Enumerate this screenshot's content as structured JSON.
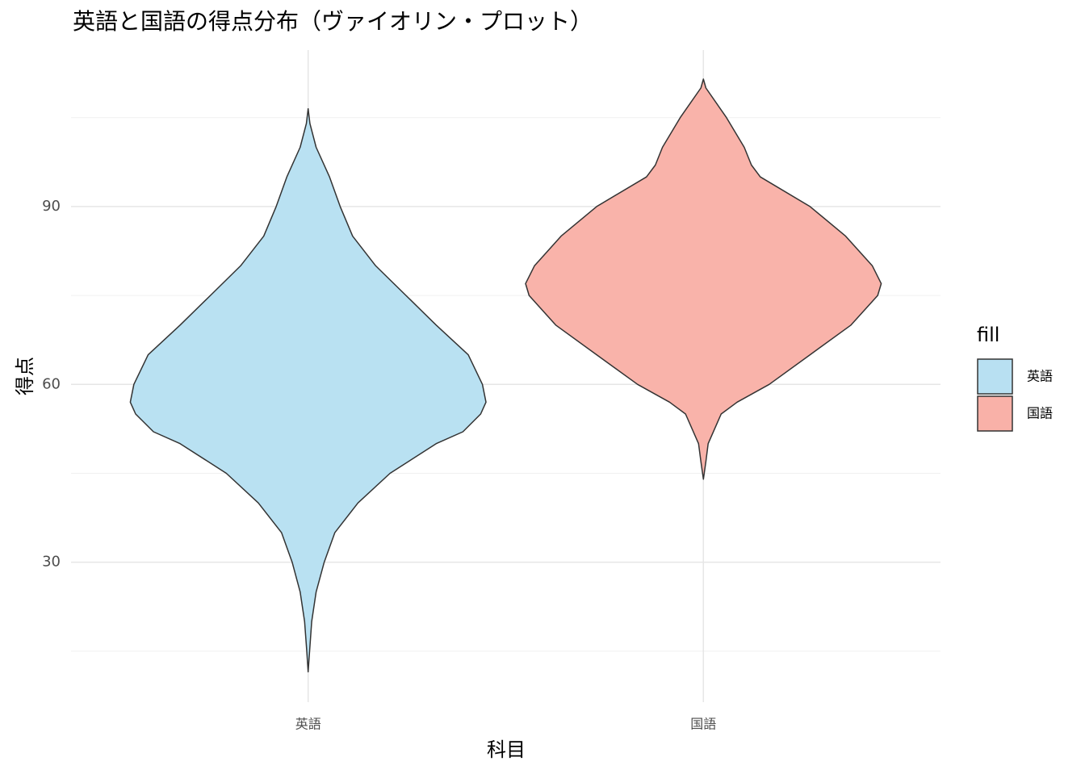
{
  "chart_data": {
    "type": "violin",
    "title": "英語と国語の得点分布（ヴァイオリン・プロット）",
    "x_label": "科目",
    "y_label": "得点",
    "categories": [
      "英語",
      "国語"
    ],
    "series": [
      {
        "name": "英語",
        "color": "#b8e0f2",
        "values": [
          106.5,
          104,
          100,
          95,
          90,
          85,
          80,
          75,
          70,
          65,
          60,
          57,
          55,
          52,
          50,
          45,
          40,
          35,
          30,
          25,
          20,
          15,
          11.5
        ],
        "density": [
          0,
          0.01,
          0.045,
          0.12,
          0.18,
          0.25,
          0.38,
          0.55,
          0.72,
          0.9,
          0.98,
          1.0,
          0.97,
          0.87,
          0.72,
          0.46,
          0.28,
          0.15,
          0.09,
          0.045,
          0.02,
          0.008,
          0
        ]
      },
      {
        "name": "国語",
        "color": "#f9b1a8",
        "values": [
          111.5,
          110,
          105,
          100,
          97,
          95,
          90,
          85,
          80,
          77,
          75,
          70,
          65,
          60,
          57,
          55,
          50,
          47,
          44
        ],
        "density": [
          0,
          0.014,
          0.13,
          0.23,
          0.27,
          0.32,
          0.6,
          0.8,
          0.95,
          1.0,
          0.98,
          0.83,
          0.6,
          0.37,
          0.19,
          0.1,
          0.027,
          0.014,
          0
        ]
      }
    ],
    "ylim": [
      6.4,
      116.4
    ],
    "yticks": [
      30,
      60,
      90
    ],
    "minor_yticks": [
      15,
      45,
      75,
      105
    ],
    "grid": true,
    "legend_title": "fill"
  }
}
